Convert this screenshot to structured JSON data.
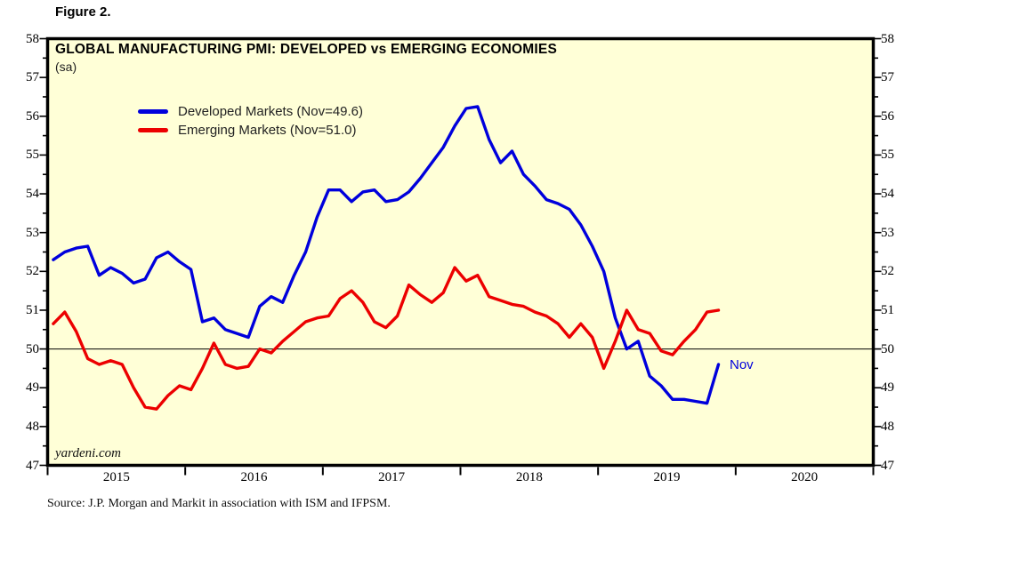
{
  "figure_label": "Figure 2.",
  "title": "GLOBAL MANUFACTURING PMI: DEVELOPED vs EMERGING ECONOMIES",
  "subtitle": "(sa)",
  "watermark": "yardeni.com",
  "source": "Source:  J.P. Morgan and Markit in association with ISM and IFPSM.",
  "annotations": {
    "last_point_label": "Nov"
  },
  "colors": {
    "developed": "#0000DC",
    "emerging": "#EC0000",
    "plot_bg": "#FFFFD7",
    "frame": "#000000",
    "reference_line": "#000000",
    "annotation_text": "#0000DC"
  },
  "chart_data": {
    "type": "line",
    "title": "GLOBAL MANUFACTURING PMI: DEVELOPED vs EMERGING ECONOMIES",
    "subtitle": "(sa)",
    "x_start_month": "2015-01",
    "x_end_month": "2019-11",
    "x_total_months": 72,
    "x_tick_labels": [
      "2015",
      "2016",
      "2017",
      "2018",
      "2019",
      "2020"
    ],
    "ylim": [
      47,
      58
    ],
    "y_tick_labels": [
      47,
      48,
      49,
      50,
      51,
      52,
      53,
      54,
      55,
      56,
      57,
      58
    ],
    "y_minor_step": 0.5,
    "reference_line_y": 50,
    "grid": "off",
    "legend_position": "top-left-inside",
    "series": [
      {
        "name": "Developed Markets (Nov=49.6)",
        "color_key": "developed",
        "last_value": 49.6,
        "values": [
          52.3,
          52.5,
          52.6,
          52.65,
          51.9,
          52.1,
          51.95,
          51.7,
          51.8,
          52.35,
          52.5,
          52.25,
          52.05,
          50.7,
          50.8,
          50.5,
          50.4,
          50.3,
          51.1,
          51.35,
          51.2,
          51.9,
          52.5,
          53.4,
          54.1,
          54.1,
          53.8,
          54.05,
          54.1,
          53.8,
          53.85,
          54.05,
          54.4,
          54.8,
          55.2,
          55.75,
          56.2,
          56.25,
          55.4,
          54.8,
          55.1,
          54.5,
          54.2,
          53.85,
          53.75,
          53.6,
          53.2,
          52.65,
          52.0,
          50.8,
          50.0,
          50.2,
          49.3,
          49.05,
          48.7,
          48.7,
          48.65,
          48.6,
          49.6
        ]
      },
      {
        "name": "Emerging Markets (Nov=51.0)",
        "color_key": "emerging",
        "last_value": 51.0,
        "values": [
          50.65,
          50.95,
          50.45,
          49.75,
          49.6,
          49.7,
          49.6,
          49.0,
          48.5,
          48.45,
          48.8,
          49.05,
          48.95,
          49.5,
          50.15,
          49.6,
          49.5,
          49.55,
          50.0,
          49.9,
          50.2,
          50.45,
          50.7,
          50.8,
          50.85,
          51.3,
          51.5,
          51.2,
          50.7,
          50.55,
          50.85,
          51.65,
          51.4,
          51.2,
          51.45,
          52.1,
          51.75,
          51.9,
          51.35,
          51.25,
          51.15,
          51.1,
          50.95,
          50.85,
          50.65,
          50.3,
          50.65,
          50.3,
          49.5,
          50.2,
          51.0,
          50.5,
          50.4,
          49.95,
          49.85,
          50.2,
          50.5,
          50.95,
          51.0
        ]
      }
    ]
  }
}
